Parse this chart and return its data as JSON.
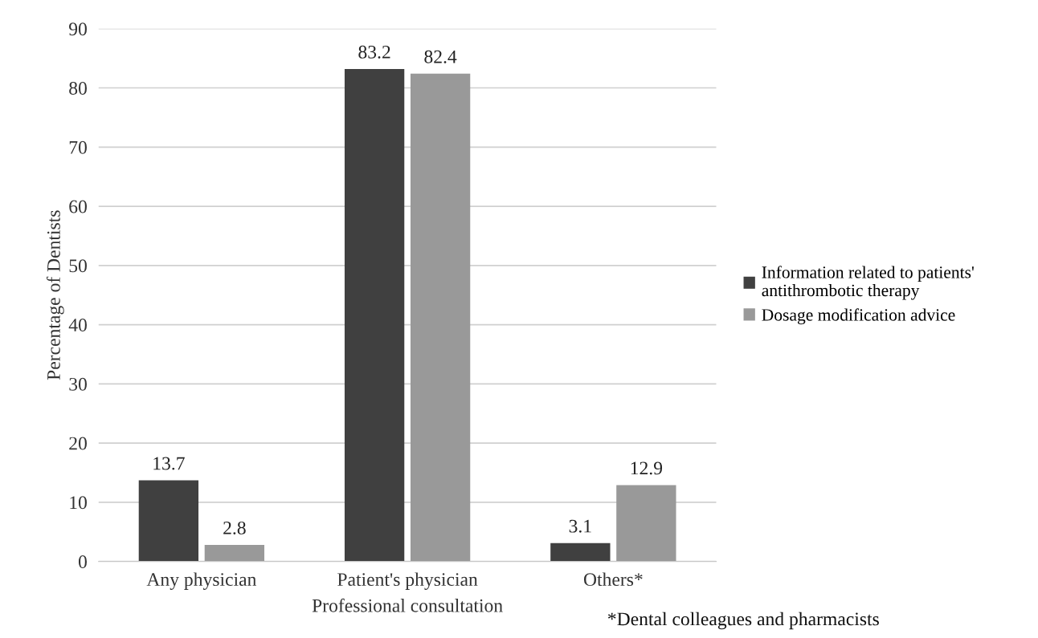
{
  "chart_data": {
    "type": "bar",
    "xlabel": "Professional consultation",
    "ylabel": "Percentage of Dentists",
    "categories": [
      "Any physician",
      "Patient's physician",
      "Others*"
    ],
    "series": [
      {
        "name": "Information related to patients' antithrombotic therapy",
        "color": "#404040",
        "values": [
          13.7,
          83.2,
          3.1
        ]
      },
      {
        "name": "Dosage modification advice",
        "color": "#999999",
        "values": [
          2.8,
          82.4,
          12.9
        ]
      }
    ],
    "ylim": [
      0,
      90
    ],
    "yticks": [
      0,
      10,
      20,
      30,
      40,
      50,
      60,
      70,
      80,
      90
    ],
    "grid": "y",
    "legend": "right",
    "data_labels": true,
    "annotations": [
      "*Dental colleagues and pharmacists"
    ]
  }
}
